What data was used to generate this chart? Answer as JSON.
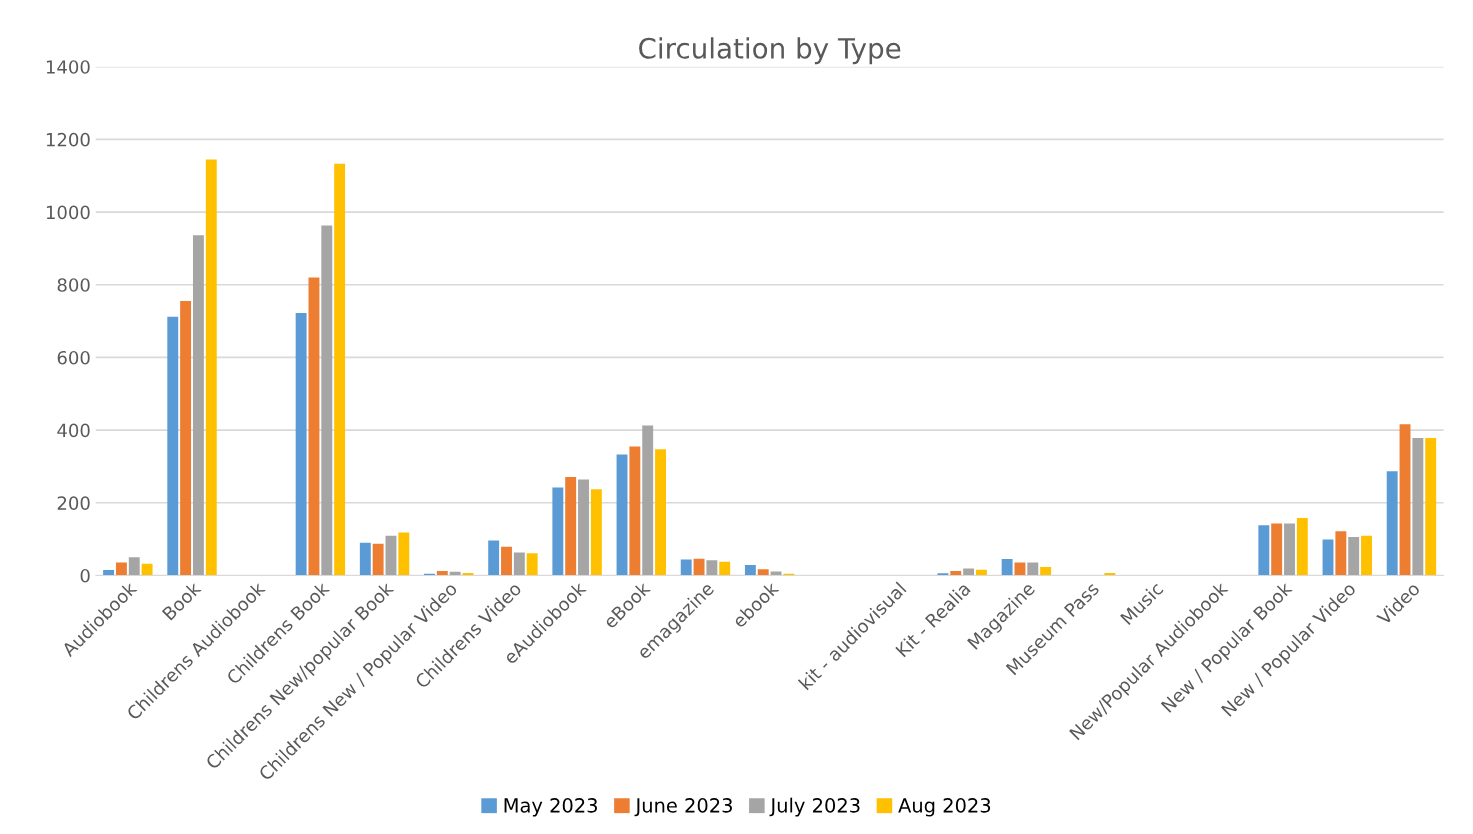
{
  "chart_data": {
    "type": "bar",
    "title": "Circulation by Type",
    "categories": [
      "Audiobook",
      "Book",
      "Childrens Audiobook",
      "Childrens Book",
      "Childrens New/popular Book",
      "Childrens New / Popular Video",
      "Childrens Video",
      "eAudiobook",
      "eBook",
      "emagazine",
      "ebook",
      null,
      "kit - audiovisual",
      "Kit - Realia",
      "Magazine",
      "Museum Pass",
      "Music",
      "New/Popular Audiobook",
      "New / Popular Book",
      "New / Popular Video",
      "Video"
    ],
    "series": [
      {
        "name": "May 2023",
        "color": "#5b9bd5",
        "values": [
          15,
          712,
          0,
          722,
          90,
          5,
          96,
          242,
          333,
          44,
          29,
          0,
          0,
          6,
          45,
          0,
          0,
          0,
          138,
          99,
          287
        ]
      },
      {
        "name": "June 2023",
        "color": "#ed7d31",
        "values": [
          36,
          755,
          0,
          820,
          87,
          12,
          79,
          271,
          355,
          46,
          17,
          0,
          0,
          12,
          36,
          0,
          0,
          0,
          143,
          122,
          416
        ]
      },
      {
        "name": "July 2023",
        "color": "#a5a5a5",
        "values": [
          50,
          936,
          0,
          963,
          109,
          10,
          63,
          264,
          413,
          42,
          11,
          0,
          0,
          19,
          36,
          0,
          0,
          0,
          143,
          106,
          378
        ]
      },
      {
        "name": "Aug 2023",
        "color": "#ffc000",
        "values": [
          32,
          1145,
          0,
          1133,
          118,
          7,
          61,
          237,
          347,
          38,
          5,
          0,
          0,
          16,
          23,
          7,
          0,
          0,
          158,
          109,
          378
        ]
      }
    ],
    "ylim": [
      0,
      1400
    ],
    "yticks": [
      0,
      200,
      400,
      600,
      800,
      1000,
      1200,
      1400
    ],
    "grid": "y",
    "legend": "bottom"
  }
}
